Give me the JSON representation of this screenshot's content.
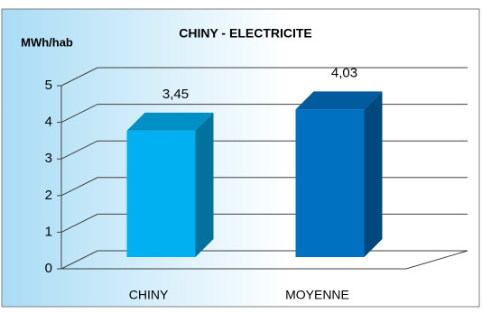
{
  "chart_data": {
    "type": "bar3d",
    "title": "CHINY - ELECTRICITE",
    "y_label": "MWh/hab",
    "categories": [
      "CHINY",
      "MOYENNE"
    ],
    "values": [
      3.45,
      4.03
    ],
    "value_labels": [
      "3,45",
      "4,03"
    ],
    "colors": [
      "#00b0f0",
      "#0070c0"
    ],
    "ylim": [
      0,
      5
    ],
    "yticks": [
      0,
      1,
      2,
      3,
      4,
      5
    ],
    "grid": true
  }
}
